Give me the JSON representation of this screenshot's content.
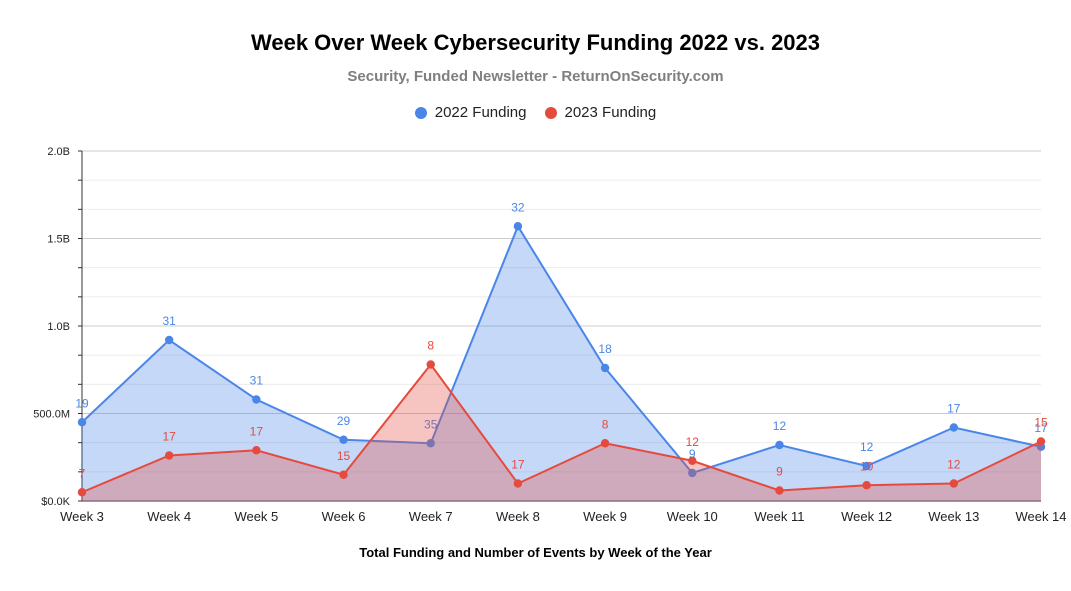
{
  "chart_data": {
    "type": "area",
    "title": "Week Over Week Cybersecurity Funding 2022 vs. 2023",
    "subtitle": "Security, Funded Newsletter - ReturnOnSecurity.com",
    "xlabel": "Total Funding and Number of Events by Week of the Year",
    "ylabel": "",
    "categories": [
      "Week 3",
      "Week 4",
      "Week 5",
      "Week 6",
      "Week 7",
      "Week 8",
      "Week 9",
      "Week 10",
      "Week 11",
      "Week 12",
      "Week 13",
      "Week 14"
    ],
    "ylim": [
      0,
      2.0
    ],
    "y_unit": "B",
    "y_ticks": [
      {
        "value": 0,
        "label": "$0.0K"
      },
      {
        "value": 0.5,
        "label": "500.0M"
      },
      {
        "value": 1.0,
        "label": "1.0B"
      },
      {
        "value": 1.5,
        "label": "1.5B"
      },
      {
        "value": 2.0,
        "label": "2.0B"
      }
    ],
    "grid": true,
    "legend_position": "top-center",
    "series": [
      {
        "name": "2022 Funding",
        "color": "#4a86e8",
        "values": [
          0.45,
          0.92,
          0.58,
          0.35,
          0.33,
          1.57,
          0.76,
          0.16,
          0.32,
          0.2,
          0.42,
          0.31
        ],
        "labels": [
          "19",
          "31",
          "31",
          "29",
          "35",
          "32",
          "18",
          "9",
          "12",
          "12",
          "17",
          "17"
        ]
      },
      {
        "name": "2023 Funding",
        "color": "#e64a3d",
        "values": [
          0.05,
          0.26,
          0.29,
          0.15,
          0.78,
          0.1,
          0.33,
          0.23,
          0.06,
          0.09,
          0.1,
          0.34
        ],
        "labels": [
          "7",
          "17",
          "17",
          "15",
          "8",
          "17",
          "8",
          "12",
          "9",
          "10",
          "12",
          "15"
        ]
      }
    ]
  }
}
